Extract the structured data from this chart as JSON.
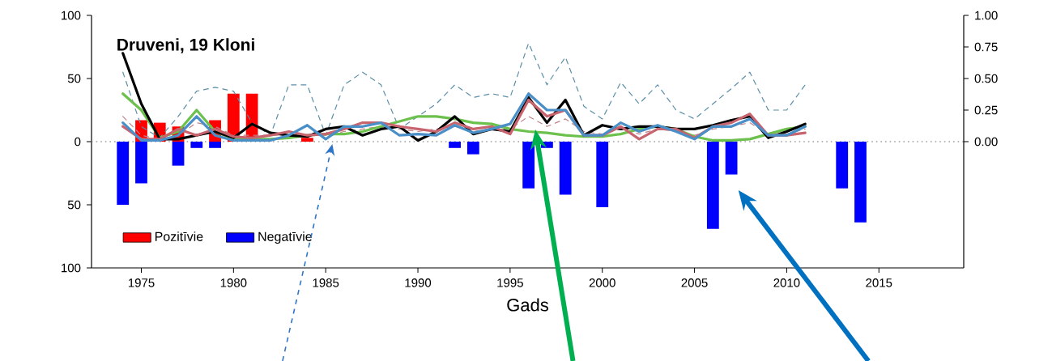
{
  "chart_data": {
    "type": "bar",
    "title": "Druveni, 19 Kloni",
    "xlabel": "Gads",
    "xlim": [
      1972.3,
      2019.6
    ],
    "xticks": [
      1975,
      1980,
      1985,
      1990,
      1995,
      2000,
      2005,
      2010,
      2015
    ],
    "ylim": [
      -100,
      100
    ],
    "yticks": [
      {
        "value": -100,
        "label": "100"
      },
      {
        "value": -50,
        "label": "50"
      },
      0,
      50,
      100
    ],
    "y2lim": [
      -1,
      1
    ],
    "y2ticks": [
      {
        "value": 0,
        "label": "0.00"
      },
      {
        "value": 0.25,
        "label": "0.25"
      },
      {
        "value": 0.5,
        "label": "0.50"
      },
      {
        "value": 0.75,
        "label": "0.75"
      },
      {
        "value": 1,
        "label": "1.00"
      }
    ],
    "legend": "bottom left",
    "ref_lines": [
      {
        "axis": "y",
        "value": 0,
        "color": "#a0a0a0",
        "line_style": "dotted"
      }
    ],
    "series": [
      {
        "name": "Pozitīvie",
        "color": "#ff0000",
        "x": [
          1975,
          1976,
          1977,
          1979,
          1980,
          1981,
          1984
        ],
        "values": [
          17,
          15,
          12,
          17,
          38,
          38,
          3
        ]
      },
      {
        "name": "Negatīvie",
        "color": "#0000ff",
        "x": [
          1974,
          1975,
          1977,
          1978,
          1979,
          1992,
          1993,
          1996,
          1997,
          1998,
          2000,
          2006,
          2007,
          2013,
          2014
        ],
        "values": [
          -50,
          -33,
          -19,
          -5,
          -5,
          -5,
          -10,
          -37,
          -5,
          -42,
          -52,
          -69,
          -26,
          -37,
          -64
        ]
      },
      {
        "type": "line",
        "axis": "y2",
        "line_style": "dashed",
        "color": "#5b8fa8",
        "x": [
          1974,
          1975,
          1976,
          1977,
          1978,
          1979,
          1980,
          1981,
          1982,
          1983,
          1984,
          1985,
          1986,
          1987,
          1988,
          1989,
          1990,
          1991,
          1992,
          1993,
          1994,
          1995,
          1996,
          1997,
          1998,
          1999,
          2000,
          2001,
          2002,
          2003,
          2004,
          2005,
          2006,
          2007,
          2008,
          2009,
          2010,
          2011
        ],
        "values": [
          0.55,
          0.12,
          0.03,
          0.2,
          0.4,
          0.43,
          0.4,
          0.15,
          0.05,
          0.45,
          0.45,
          0.05,
          0.45,
          0.55,
          0.45,
          0.1,
          0.2,
          0.3,
          0.45,
          0.35,
          0.38,
          0.35,
          0.78,
          0.45,
          0.67,
          0.28,
          0.18,
          0.47,
          0.3,
          0.45,
          0.25,
          0.18,
          0.3,
          0.42,
          0.55,
          0.25,
          0.25,
          0.45
        ]
      },
      {
        "type": "line",
        "axis": "y2",
        "line_style": "dashed",
        "color": "#c0808a",
        "x": [
          1974,
          1975,
          1976,
          1977,
          1978,
          1979,
          1980,
          1981,
          1982,
          1983,
          1984,
          1985,
          1986,
          1987,
          1988,
          1989,
          1990,
          1991,
          1992,
          1993,
          1994,
          1995,
          1996,
          1997,
          1998,
          1999,
          2000,
          2001,
          2002,
          2003,
          2004,
          2005,
          2006,
          2007,
          2008,
          2009,
          2010,
          2011
        ],
        "values": [
          0.2,
          0.05,
          0.02,
          0.05,
          0.15,
          0.12,
          0.05,
          0.05,
          0.05,
          0.05,
          0.05,
          0.05,
          0.08,
          0.1,
          0.12,
          0.1,
          0.08,
          0.1,
          0.12,
          0.08,
          0.1,
          0.1,
          0.2,
          0.12,
          0.18,
          0.08,
          0.06,
          0.1,
          0.06,
          0.1,
          0.08,
          0.05,
          0.1,
          0.12,
          0.15,
          0.06,
          0.06,
          0.1
        ]
      },
      {
        "type": "line",
        "axis": "y2",
        "line_style": "solid",
        "color": "#6cc04c",
        "x": [
          1974,
          1975,
          1976,
          1977,
          1978,
          1979,
          1980,
          1981,
          1982,
          1983,
          1984,
          1985,
          1986,
          1987,
          1988,
          1989,
          1990,
          1991,
          1992,
          1993,
          1994,
          1995,
          1996,
          1997,
          1998,
          1999,
          2000,
          2001,
          2002,
          2003,
          2004,
          2005,
          2006,
          2007,
          2008,
          2009,
          2010,
          2011
        ],
        "values": [
          0.38,
          0.25,
          0.03,
          0.08,
          0.25,
          0.08,
          0.02,
          0.02,
          0.02,
          0.03,
          0.05,
          0.06,
          0.06,
          0.08,
          0.12,
          0.16,
          0.2,
          0.2,
          0.18,
          0.15,
          0.14,
          0.1,
          0.08,
          0.07,
          0.05,
          0.04,
          0.04,
          0.06,
          0.1,
          0.12,
          0.1,
          0.04,
          0.01,
          0.01,
          0.02,
          0.06,
          0.1,
          0.12
        ]
      },
      {
        "type": "line",
        "axis": "y2",
        "line_style": "solid",
        "color": "#000000",
        "x": [
          1974,
          1975,
          1976,
          1977,
          1978,
          1979,
          1980,
          1981,
          1982,
          1983,
          1984,
          1985,
          1986,
          1987,
          1988,
          1989,
          1990,
          1991,
          1992,
          1993,
          1994,
          1995,
          1996,
          1997,
          1998,
          1999,
          2000,
          2001,
          2002,
          2003,
          2004,
          2005,
          2006,
          2007,
          2008,
          2009,
          2010,
          2011
        ],
        "values": [
          0.7,
          0.3,
          0.02,
          0.02,
          0.05,
          0.08,
          0.03,
          0.14,
          0.07,
          0.05,
          0.04,
          0.1,
          0.12,
          0.05,
          0.1,
          0.12,
          0.01,
          0.08,
          0.2,
          0.06,
          0.1,
          0.08,
          0.35,
          0.15,
          0.33,
          0.05,
          0.13,
          0.1,
          0.12,
          0.12,
          0.1,
          0.1,
          0.13,
          0.17,
          0.2,
          0.03,
          0.08,
          0.14
        ]
      },
      {
        "type": "line",
        "axis": "y2",
        "line_style": "solid",
        "color": "#c8646e",
        "x": [
          1974,
          1975,
          1976,
          1977,
          1978,
          1979,
          1980,
          1981,
          1982,
          1983,
          1984,
          1985,
          1986,
          1987,
          1988,
          1989,
          1990,
          1991,
          1992,
          1993,
          1994,
          1995,
          1996,
          1997,
          1998,
          1999,
          2000,
          2001,
          2002,
          2003,
          2004,
          2005,
          2006,
          2007,
          2008,
          2009,
          2010,
          2011
        ],
        "values": [
          0.12,
          0.02,
          0.02,
          0.1,
          0.05,
          0.1,
          0.04,
          0.03,
          0.05,
          0.08,
          0.05,
          0.06,
          0.1,
          0.15,
          0.15,
          0.12,
          0.1,
          0.08,
          0.15,
          0.1,
          0.12,
          0.06,
          0.33,
          0.2,
          0.25,
          0.05,
          0.05,
          0.12,
          0.02,
          0.1,
          0.1,
          0.03,
          0.12,
          0.15,
          0.22,
          0.05,
          0.05,
          0.07
        ]
      },
      {
        "type": "line",
        "axis": "y2",
        "line_style": "solid",
        "color": "#4a8fc8",
        "x": [
          1974,
          1975,
          1976,
          1977,
          1978,
          1979,
          1980,
          1981,
          1982,
          1983,
          1984,
          1985,
          1986,
          1987,
          1988,
          1989,
          1990,
          1991,
          1992,
          1993,
          1994,
          1995,
          1996,
          1997,
          1998,
          1999,
          2000,
          2001,
          2002,
          2003,
          2004,
          2005,
          2006,
          2007,
          2008,
          2009,
          2010,
          2011
        ],
        "values": [
          0.15,
          0.01,
          0.01,
          0.05,
          0.2,
          0.05,
          0.01,
          0.01,
          0.01,
          0.05,
          0.13,
          0.02,
          0.12,
          0.12,
          0.15,
          0.05,
          0.06,
          0.05,
          0.13,
          0.07,
          0.1,
          0.14,
          0.38,
          0.25,
          0.25,
          0.05,
          0.05,
          0.15,
          0.08,
          0.13,
          0.08,
          0.02,
          0.12,
          0.12,
          0.18,
          0.05,
          0.05,
          0.12
        ]
      }
    ]
  }
}
